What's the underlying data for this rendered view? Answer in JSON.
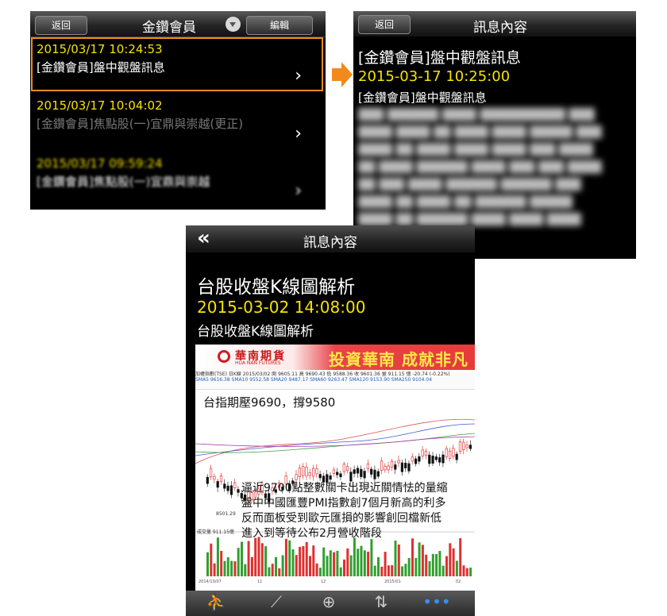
{
  "list_screen": {
    "back_label": "返回",
    "title": "金鑽會員",
    "edit_label": "編輯",
    "items": [
      {
        "date": "2015/03/17  10:24:53",
        "title": "[金鑽會員]盤中觀盤訊息"
      },
      {
        "date": "2015/03/17  10:04:02",
        "title": "[金鑽會員]焦點股(一)宜鼎與崇越(更正)"
      },
      {
        "date": "2015/03/17  09:59:24",
        "title": "[金鑽會員]焦點股(一)宜鼎與崇越"
      }
    ]
  },
  "message_screen": {
    "back_label": "返回",
    "title": "訊息內容",
    "headline": "[金鑽會員]盤中觀盤訊息",
    "datetime": "2015-03-17 10:25:00",
    "subtitle": "[金鑽會員]盤中觀盤訊息"
  },
  "detail_screen": {
    "title": "訊息內容",
    "headline": "台股收盤K線圖解析",
    "datetime": "2015-03-02 14:08:00",
    "subtitle": "台股收盤K線圖解析",
    "image": {
      "brand_cn": "華南期貨",
      "brand_en": "HUA NAN FUTURES",
      "slogan": "投資華南  成就非凡",
      "quote_line": "加權指數(TSE) 日K線 2015/03/02 開 9605.11 高 9690.43 低 9588.36 收 9601.36 量 911.15 億 -20.74 (-0.22%)",
      "ma_line": "SMA5 9616.38  SMA10 9552.58  SMA20 9487.17  SMA60 9263.47  SMA120 9153.90  SMA250 9104.04",
      "chart_note": "台指期壓9690，撐9580",
      "low_label": "8501.29",
      "volume_label": "成交量 911.15億",
      "annotation_lines": [
        "逼近9700點整數關卡出現近關情怯的量縮",
        "盤中中國匯豐PMI指數創7個月新高的利多",
        "反而面板受到歐元匯損的影響創回檔新低",
        "進入到等待公布2月營收階段"
      ],
      "date_ticks": [
        "2014/10/07",
        "11",
        "12",
        "2015/01",
        "02"
      ]
    },
    "tabbar_icons": [
      "person-icon",
      "chart-icon",
      "globe-icon",
      "trend-icon",
      "more-icon"
    ]
  },
  "colors": {
    "accent_orange": "#f08a1c",
    "date_yellow": "#f5e300",
    "banner_red": "#e63b3b"
  }
}
